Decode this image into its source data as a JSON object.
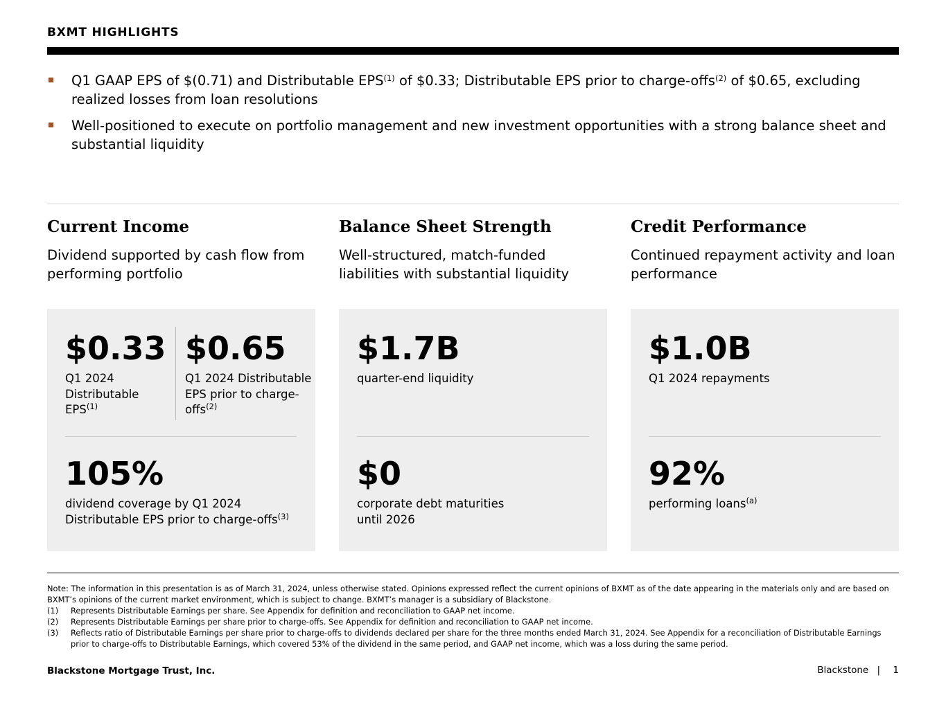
{
  "header": {
    "title": "BXMT HIGHLIGHTS"
  },
  "bullets": [
    {
      "text": "Q1 GAAP EPS of $(0.71) and Distributable EPS",
      "sup1": "(1)",
      "text2": " of $0.33; Distributable EPS prior to charge-offs",
      "sup2": "(2)",
      "text3": " of $0.65, excluding realized losses from loan resolutions"
    },
    {
      "text": "Well-positioned to execute on portfolio management and new investment opportunities with a strong balance sheet and substantial liquidity"
    }
  ],
  "columns": [
    {
      "heading": "Current Income",
      "subtitle": "Dividend supported by cash flow from performing portfolio"
    },
    {
      "heading": "Balance Sheet Strength",
      "subtitle": "Well-structured, match-funded liabilities with substantial liquidity"
    },
    {
      "heading": "Credit Performance",
      "subtitle": "Continued repayment activity and loan performance"
    }
  ],
  "cards": {
    "income": {
      "m1": {
        "value": "$0.33",
        "label": "Q1 2024 Distributable EPS",
        "sup": "(1)"
      },
      "m2": {
        "value": "$0.65",
        "label": "Q1 2024 Distributable EPS prior to charge-offs",
        "sup": "(2)"
      },
      "m3": {
        "value": "105%",
        "label": "dividend coverage by Q1 2024 Distributable EPS prior to charge-offs",
        "sup": "(3)"
      }
    },
    "balance": {
      "m1": {
        "value": "$1.7B",
        "label": "quarter-end liquidity"
      },
      "m2": {
        "value": "$0",
        "label": "corporate debt maturities until 2026"
      }
    },
    "credit": {
      "m1": {
        "value": "$1.0B",
        "label": "Q1 2024 repayments"
      },
      "m2": {
        "value": "92%",
        "label": "performing loans",
        "sup": "(a)"
      }
    }
  },
  "notes": {
    "intro": "Note: The information in this presentation is as of March 31, 2024, unless otherwise stated. Opinions expressed reflect the current opinions of BXMT as of the date appearing in the materials only and are based on BXMT’s opinions of the current market environment, which is subject to change. BXMT’s manager is a subsidiary of Blackstone.",
    "items": [
      {
        "key": "(1)",
        "text": "Represents Distributable Earnings per share. See Appendix for definition and reconciliation to GAAP net income."
      },
      {
        "key": "(2)",
        "text": "Represents Distributable Earnings per share prior to charge-offs. See Appendix for definition and reconciliation to GAAP net income."
      },
      {
        "key": "(3)",
        "text": "Reflects ratio of Distributable Earnings per share prior to charge-offs to dividends declared per share for the three months ended March 31, 2024. See Appendix for a reconciliation of Distributable Earnings prior to charge-offs to Distributable Earnings, which covered 53% of the dividend in the same period, and GAAP net income, which was a loss during the same period."
      }
    ]
  },
  "footer": {
    "company": "Blackstone Mortgage Trust, Inc.",
    "brand": "Blackstone",
    "divider": "|",
    "page": "1"
  },
  "colors": {
    "accent": "#a0522d",
    "card": "#eeeeee"
  }
}
